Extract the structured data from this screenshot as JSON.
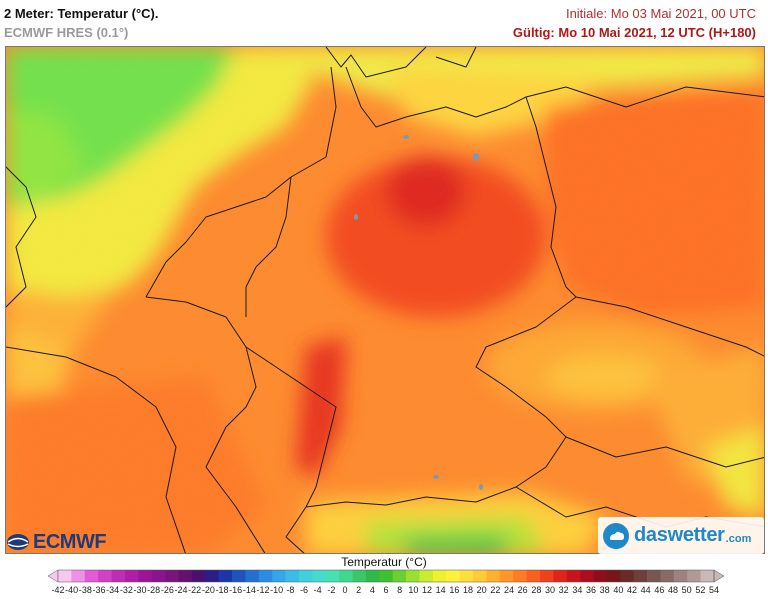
{
  "header": {
    "title": "2 Meter: Temperatur (°C).",
    "model": "ECMWF HRES (0.1°)",
    "initial": "Initiale: Mo 03 Mai 2021, 00 UTC",
    "valid": "Gültig: Mo 10 Mai 2021, 12 UTC (H+180)"
  },
  "logos": {
    "ecmwf": "ECMWF",
    "daswetter": "daswetter",
    "daswetter_suffix": ".com"
  },
  "legend": {
    "title": "Temperatur (°C)",
    "labels": [
      "-42",
      "-40",
      "-38",
      "-36",
      "-34",
      "-32",
      "-30",
      "-28",
      "-26",
      "-24",
      "-22",
      "-20",
      "-18",
      "-16",
      "-14",
      "-12",
      "-10",
      "-8",
      "-6",
      "-4",
      "-2",
      "0",
      "2",
      "4",
      "6",
      "8",
      "10",
      "12",
      "14",
      "16",
      "18",
      "20",
      "22",
      "24",
      "26",
      "28",
      "30",
      "32",
      "34",
      "36",
      "38",
      "40",
      "42",
      "44",
      "46",
      "48",
      "50",
      "52",
      "54"
    ],
    "colors": [
      "#f7c7f0",
      "#ef8fe6",
      "#e35ad6",
      "#d43fc8",
      "#c22ab8",
      "#b01ea8",
      "#9c1599",
      "#8a148f",
      "#78137f",
      "#661170",
      "#4a1070",
      "#2c1c8a",
      "#1a36a8",
      "#1e52c0",
      "#2470d0",
      "#2c8ce0",
      "#34a6ea",
      "#3cbce8",
      "#40cfe0",
      "#44dccf",
      "#46e0b4",
      "#40d890",
      "#38c86a",
      "#30b848",
      "#40c030",
      "#6ad030",
      "#98e030",
      "#c8ec30",
      "#eef030",
      "#fff23a",
      "#ffe03a",
      "#ffcb38",
      "#ffb030",
      "#ff962a",
      "#ff7c24",
      "#fc6020",
      "#f0401c",
      "#e0241a",
      "#c8141c",
      "#ac0e1e",
      "#8e0e1c",
      "#761818",
      "#6a2a28",
      "#6e3e3a",
      "#7a5450",
      "#8a6a66",
      "#9c8280",
      "#b09a98",
      "#c8b8b6"
    ]
  },
  "colors": {
    "sea_green": "#6ee24a",
    "warm_orange": "#ff7a26",
    "hot_red": "#e83018",
    "coast_yellow": "#f2f040",
    "border_line": "#1a1a1a"
  }
}
